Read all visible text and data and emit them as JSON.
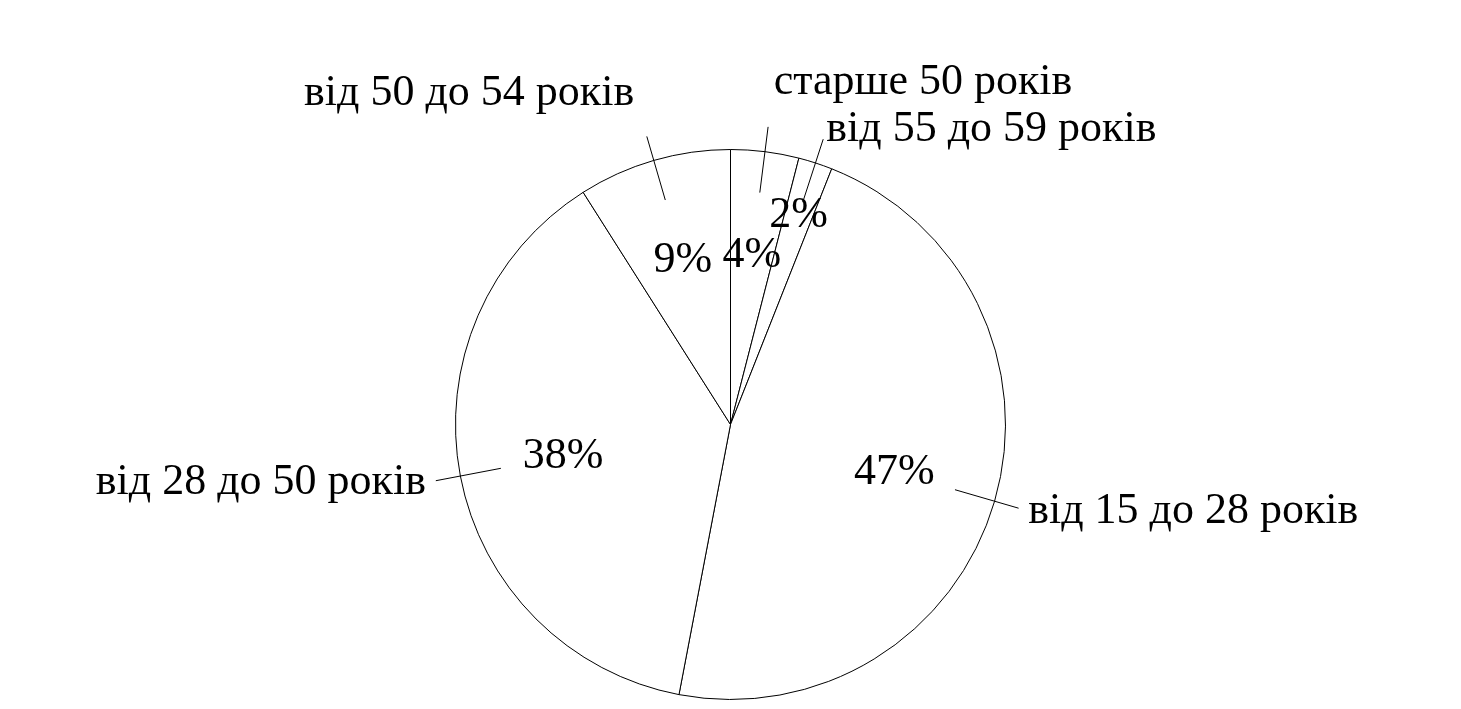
{
  "chart_data": {
    "type": "pie",
    "categories": [
      "старше 50 років",
      "від 55 до 59 років",
      "від 15 до 28 років",
      "від 28 до 50 років",
      "від 50 до 54 років"
    ],
    "values": [
      4,
      2,
      47,
      38,
      9
    ],
    "colors": [
      "#ffffff",
      "#ffffff",
      "#ffffff",
      "#ffffff",
      "#ffffff"
    ],
    "value_labels": [
      "4%",
      "2%",
      "47%",
      "38%",
      "9%"
    ],
    "legend": false
  }
}
